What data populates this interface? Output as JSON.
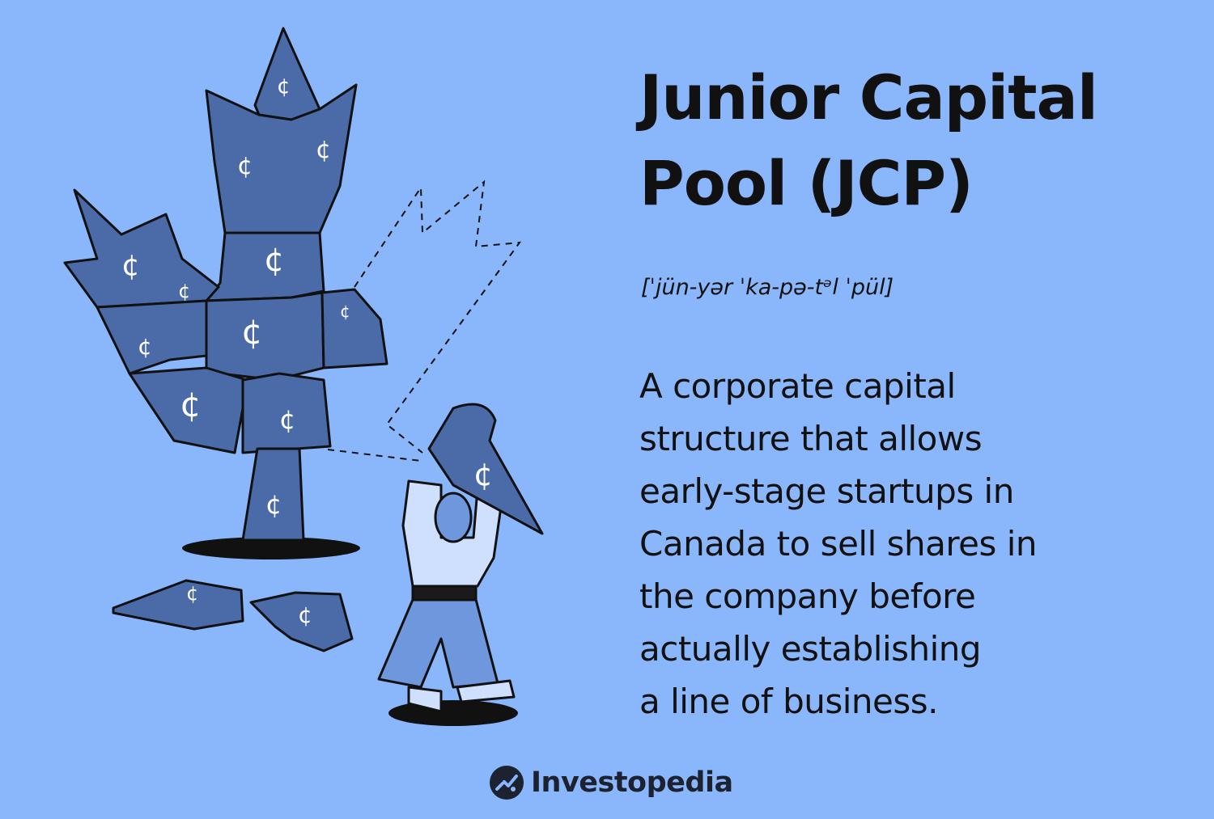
{
  "title": "Junior Capital Pool (JCP)",
  "pronunciation": "[ˈjün-yər ˈka-pə-tᵊl ˈpül]",
  "definition": "A corporate capital\nstructure that allows\nearly-stage startups in\nCanada to sell shares in\nthe company before\nactually establishing\na line of business.",
  "brand": {
    "name": "Investopedia"
  },
  "illustration": {
    "symbol": "¢"
  },
  "colors": {
    "background": "#8ab6fb",
    "puzzle": "#4a6ba8",
    "ink": "#111111",
    "shirt": "#cfe0ff",
    "pants": "#6f97de"
  }
}
